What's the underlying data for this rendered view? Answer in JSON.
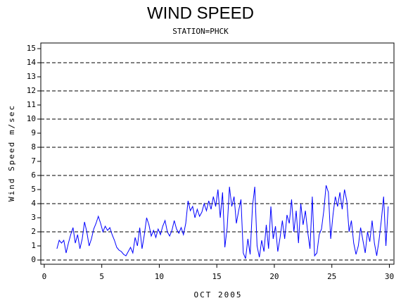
{
  "chart_data": {
    "type": "line",
    "title": "WIND SPEED",
    "subtitle": "STATION=PHCK",
    "x_label": "OCT 2005",
    "y_label": "Wind Speed m/sec",
    "xlim": [
      -0.3,
      30.4
    ],
    "xticks": [
      0,
      5,
      10,
      15,
      20,
      25,
      30
    ],
    "ylim": [
      -0.3,
      15.4
    ],
    "yticks": [
      0,
      1,
      2,
      3,
      4,
      5,
      6,
      7,
      8,
      9,
      10,
      11,
      12,
      13,
      14,
      15
    ],
    "grid_lines": [
      0,
      2,
      4,
      6,
      8,
      10,
      12,
      14
    ],
    "x": [
      1.1,
      1.3,
      1.5,
      1.7,
      1.9,
      2.1,
      2.3,
      2.5,
      2.7,
      2.9,
      3.1,
      3.3,
      3.5,
      3.7,
      3.9,
      4.1,
      4.3,
      4.5,
      4.7,
      4.9,
      5.1,
      5.3,
      5.5,
      5.7,
      5.9,
      6.1,
      6.3,
      6.5,
      6.7,
      6.9,
      7.1,
      7.3,
      7.5,
      7.7,
      7.9,
      8.1,
      8.3,
      8.5,
      8.7,
      8.9,
      9.1,
      9.3,
      9.5,
      9.7,
      9.9,
      10.1,
      10.3,
      10.5,
      10.7,
      10.9,
      11.1,
      11.3,
      11.5,
      11.7,
      11.9,
      12.1,
      12.3,
      12.5,
      12.7,
      12.9,
      13.1,
      13.3,
      13.5,
      13.7,
      13.9,
      14.1,
      14.3,
      14.5,
      14.7,
      14.9,
      15.1,
      15.3,
      15.5,
      15.7,
      15.9,
      16.1,
      16.3,
      16.5,
      16.7,
      16.9,
      17.1,
      17.3,
      17.5,
      17.7,
      17.9,
      18.1,
      18.3,
      18.5,
      18.7,
      18.9,
      19.1,
      19.3,
      19.5,
      19.7,
      19.9,
      20.1,
      20.3,
      20.5,
      20.7,
      20.9,
      21.1,
      21.3,
      21.5,
      21.7,
      21.9,
      22.1,
      22.3,
      22.5,
      22.7,
      22.9,
      23.1,
      23.3,
      23.5,
      23.7,
      23.9,
      24.1,
      24.3,
      24.5,
      24.7,
      24.9,
      25.1,
      25.3,
      25.5,
      25.7,
      25.9,
      26.1,
      26.3,
      26.5,
      26.7,
      26.9,
      27.1,
      27.3,
      27.5,
      27.7,
      27.9,
      28.1,
      28.3,
      28.5,
      28.7,
      28.9,
      29.1,
      29.3,
      29.5,
      29.7,
      29.9
    ],
    "series": [
      {
        "name": "Wind Speed",
        "color": "#0000ff",
        "values": [
          0.8,
          1.4,
          1.2,
          1.4,
          0.5,
          1.2,
          1.8,
          2.3,
          1.2,
          1.8,
          0.8,
          1.5,
          2.7,
          2.0,
          1.0,
          1.5,
          2.2,
          2.6,
          3.1,
          2.6,
          2.0,
          2.4,
          2.1,
          2.3,
          1.8,
          1.4,
          0.9,
          0.7,
          0.6,
          0.4,
          0.3,
          0.6,
          0.9,
          0.5,
          1.6,
          1.0,
          2.3,
          0.8,
          1.8,
          3.0,
          2.5,
          1.7,
          2.1,
          1.6,
          2.2,
          1.8,
          2.4,
          2.8,
          2.0,
          1.7,
          2.1,
          2.8,
          2.2,
          1.9,
          2.3,
          1.8,
          2.6,
          4.2,
          3.5,
          3.8,
          3.0,
          3.6,
          3.1,
          3.4,
          4.0,
          3.5,
          4.2,
          3.6,
          4.5,
          3.8,
          5.0,
          3.0,
          4.8,
          0.9,
          2.3,
          5.2,
          3.8,
          4.5,
          2.6,
          3.5,
          4.3,
          0.5,
          0.1,
          1.5,
          0.4,
          3.8,
          5.2,
          1.0,
          0.2,
          1.4,
          0.6,
          2.5,
          0.8,
          3.8,
          1.5,
          2.4,
          0.6,
          1.6,
          2.8,
          1.5,
          3.2,
          2.6,
          4.3,
          2.0,
          3.5,
          1.2,
          4.0,
          2.5,
          3.5,
          2.0,
          0.8,
          4.5,
          0.3,
          0.5,
          1.8,
          2.2,
          3.5,
          5.3,
          4.8,
          1.5,
          3.2,
          4.5,
          3.8,
          4.8,
          3.6,
          5.0,
          4.2,
          2.0,
          2.8,
          1.2,
          0.4,
          1.0,
          2.3,
          1.4,
          0.5,
          2.0,
          1.3,
          2.8,
          1.2,
          0.3,
          1.4,
          2.8,
          4.5,
          1.0,
          3.8
        ]
      }
    ]
  }
}
